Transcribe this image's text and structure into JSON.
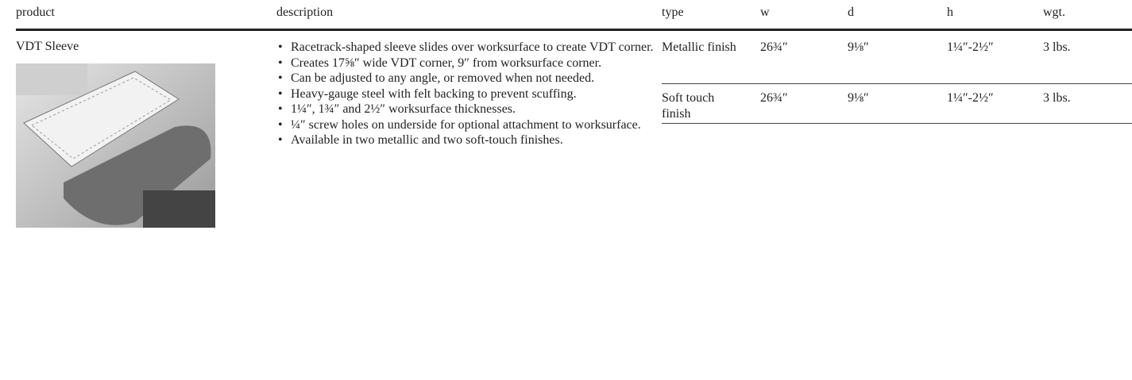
{
  "header": {
    "columns": [
      "product",
      "description",
      "type",
      "w",
      "d",
      "h",
      "wgt."
    ]
  },
  "product": {
    "name": "VDT Sleeve",
    "description": [
      "Racetrack-shaped sleeve slides over worksurface to create VDT corner.",
      "Creates 17⅝″ wide VDT corner, 9″ from worksurface corner.",
      "Can be adjusted to any angle, or removed when not needed.",
      "Heavy-gauge steel with felt backing to prevent scuffing.",
      "1¼″, 1¾″ and 2½″ worksurface thicknesses.",
      "¼″ screw holes on underside for optional attachment to worksurface.",
      "Available in two metallic and two soft-touch finishes."
    ]
  },
  "table": {
    "rows": [
      [
        "Metallic finish",
        "26¾″",
        "9⅛″",
        "1¼″-2½″",
        "3 lbs."
      ],
      [
        "Soft touch finish",
        "26¾″",
        "9⅛″",
        "1¼″-2½″",
        "3 lbs."
      ]
    ]
  }
}
